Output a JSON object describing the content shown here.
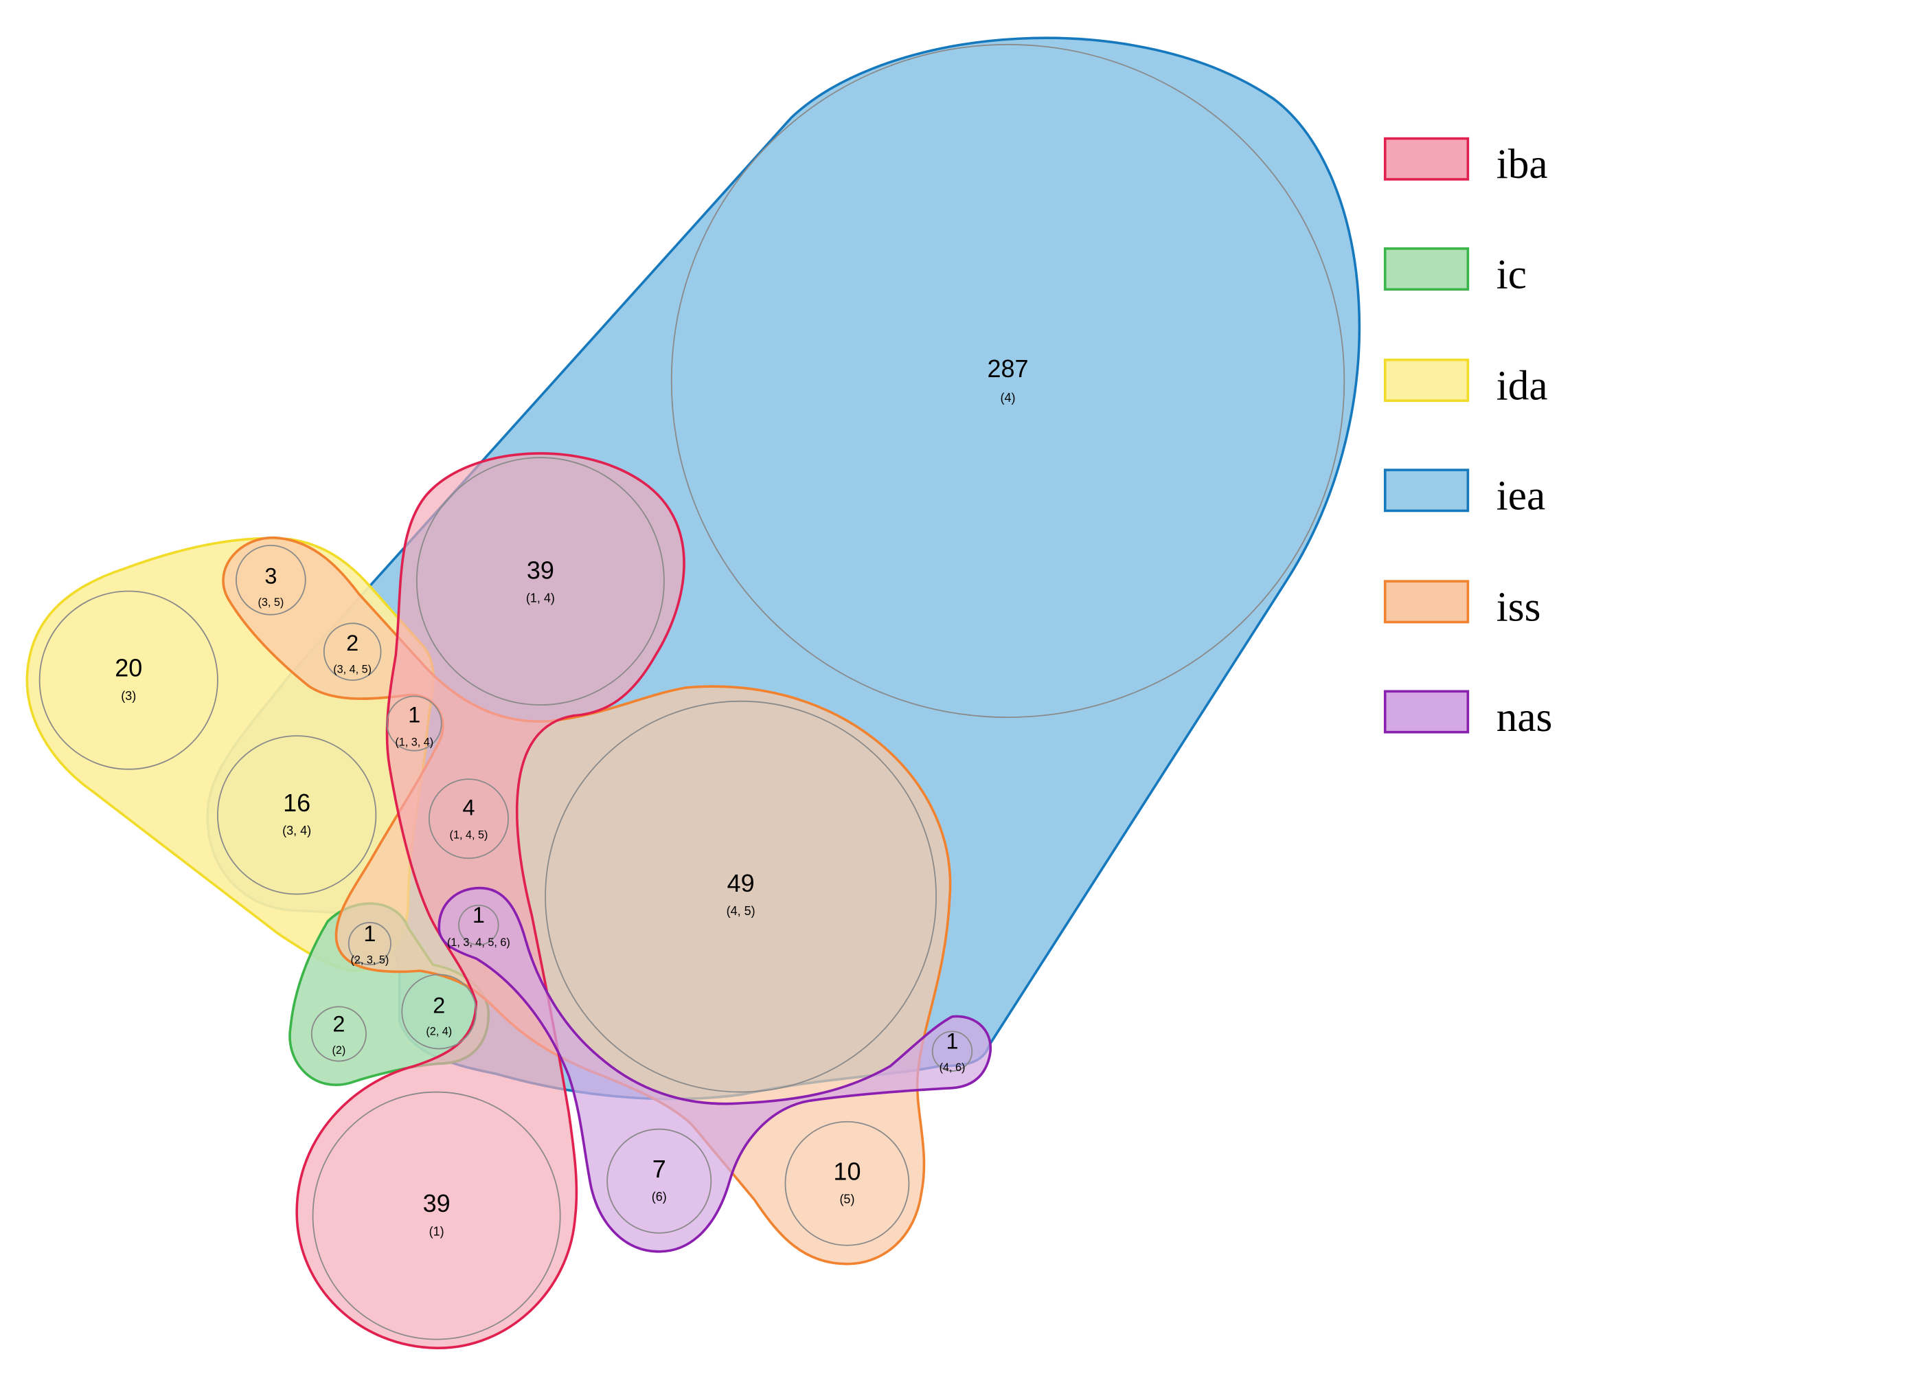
{
  "sets": [
    {
      "id": 1,
      "name": "iba",
      "fill": "#f4a6b6",
      "stroke": "#e0204f"
    },
    {
      "id": 2,
      "name": "ic",
      "fill": "#b0e0b6",
      "stroke": "#3cb54a"
    },
    {
      "id": 3,
      "name": "ida",
      "fill": "#fdf0a0",
      "stroke": "#f2dc2a"
    },
    {
      "id": 4,
      "name": "iea",
      "fill": "#9accea",
      "stroke": "#1679bd"
    },
    {
      "id": 5,
      "name": "iss",
      "fill": "#f9c9a6",
      "stroke": "#f1822f"
    },
    {
      "id": 6,
      "name": "nas",
      "fill": "#d4a8e2",
      "stroke": "#8a1fb0"
    }
  ],
  "regions": [
    {
      "count": "287",
      "sets": "(4)"
    },
    {
      "count": "39",
      "sets": "(1, 4)"
    },
    {
      "count": "3",
      "sets": "(3, 5)"
    },
    {
      "count": "2",
      "sets": "(3, 4, 5)"
    },
    {
      "count": "20",
      "sets": "(3)"
    },
    {
      "count": "1",
      "sets": "(1, 3, 4)"
    },
    {
      "count": "16",
      "sets": "(3, 4)"
    },
    {
      "count": "4",
      "sets": "(1, 4, 5)"
    },
    {
      "count": "49",
      "sets": "(4, 5)"
    },
    {
      "count": "1",
      "sets": "(1, 3, 4, 5, 6)"
    },
    {
      "count": "1",
      "sets": "(2, 3, 5)"
    },
    {
      "count": "2",
      "sets": "(2, 4)"
    },
    {
      "count": "2",
      "sets": "(2)"
    },
    {
      "count": "1",
      "sets": "(4, 6)"
    },
    {
      "count": "7",
      "sets": "(6)"
    },
    {
      "count": "10",
      "sets": "(5)"
    },
    {
      "count": "39",
      "sets": "(1)"
    }
  ]
}
